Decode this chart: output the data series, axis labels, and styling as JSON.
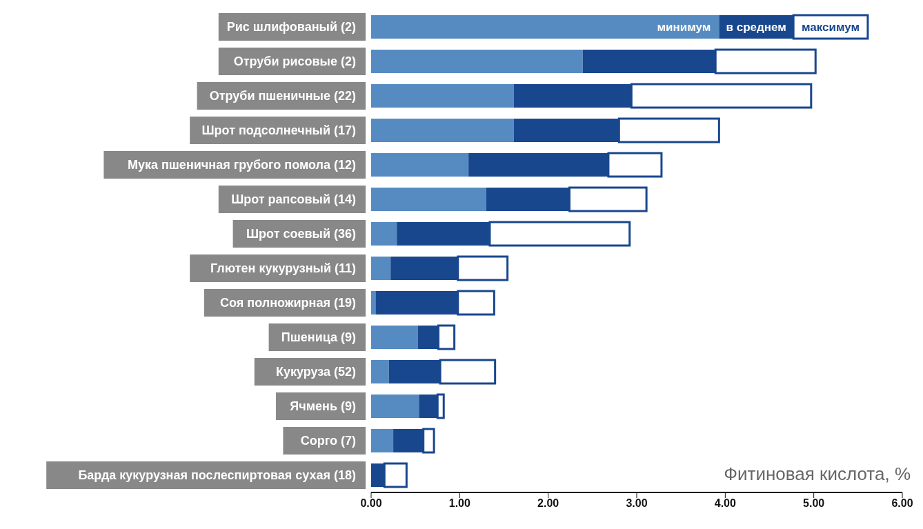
{
  "chart_data": {
    "type": "bar",
    "orientation": "horizontal",
    "stacked": true,
    "xlabel": "Фитиновая кислота, %",
    "categories": [
      "Рис шлифованый (2)",
      "Отруби рисовые (2)",
      "Отруби пшеничные (22)",
      "Шрот подсолнечный (17)",
      "Мука пшеничная грубого помола (12)",
      "Шрот рапсовый (14)",
      "Шрот соевый (36)",
      "Глютен кукурузный (11)",
      "Соя полножирная (19)",
      "Пшеница (9)",
      "Кукуруза (52)",
      "Ячмень (9)",
      "Сорго (7)",
      "Барда кукурузная послеспиртовая сухая (18)"
    ],
    "series": [
      {
        "name": "минимум",
        "color": "#568bc2",
        "values": [
          3.93,
          2.39,
          1.61,
          1.61,
          1.1,
          1.3,
          0.29,
          0.22,
          0.05,
          0.53,
          0.2,
          0.54,
          0.25,
          null
        ]
      },
      {
        "name": "в среднем",
        "color": "#18478e",
        "values": [
          0.84,
          1.5,
          1.33,
          1.19,
          1.58,
          0.94,
          1.05,
          0.76,
          0.93,
          0.23,
          0.58,
          0.21,
          0.34,
          0.15
        ]
      },
      {
        "name": "максимум",
        "color": "#ffffff",
        "values": [
          0.84,
          1.13,
          2.03,
          1.13,
          0.6,
          0.87,
          1.58,
          0.56,
          0.41,
          0.18,
          0.62,
          0.07,
          0.12,
          0.25
        ]
      }
    ],
    "xlim": [
      0,
      6
    ],
    "xticks": [
      {
        "value": 0,
        "label": "0.00"
      },
      {
        "value": 1,
        "label": "1.00"
      },
      {
        "value": 2,
        "label": "2.00"
      },
      {
        "value": 3,
        "label": "3.00"
      },
      {
        "value": 4,
        "label": "4.00"
      },
      {
        "value": 5,
        "label": "5.00"
      },
      {
        "value": 6,
        "label": "6.00"
      }
    ],
    "grid": false,
    "legend": "top right"
  }
}
